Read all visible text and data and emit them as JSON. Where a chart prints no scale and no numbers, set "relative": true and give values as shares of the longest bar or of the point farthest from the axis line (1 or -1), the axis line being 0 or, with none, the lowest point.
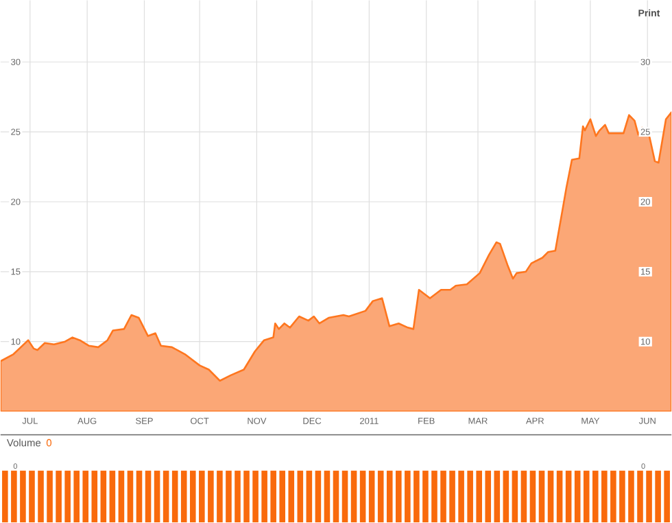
{
  "chart_data": [
    {
      "type": "area",
      "annotations": [
        "Print"
      ],
      "x": [
        "2010-06-15",
        "2010-06-22",
        "2010-06-30",
        "2010-07-03",
        "2010-07-05",
        "2010-07-09",
        "2010-07-14",
        "2010-07-20",
        "2010-07-24",
        "2010-07-28",
        "2010-08-02",
        "2010-08-07",
        "2010-08-12",
        "2010-08-15",
        "2010-08-21",
        "2010-08-25",
        "2010-08-29",
        "2010-09-03",
        "2010-09-07",
        "2010-09-10",
        "2010-09-16",
        "2010-09-23",
        "2010-10-01",
        "2010-10-06",
        "2010-10-12",
        "2010-10-18",
        "2010-10-25",
        "2010-10-31",
        "2010-11-05",
        "2010-11-10",
        "2010-11-11",
        "2010-11-13",
        "2010-11-16",
        "2010-11-19",
        "2010-11-24",
        "2010-11-29",
        "2010-12-02",
        "2010-12-05",
        "2010-12-10",
        "2010-12-18",
        "2010-12-21",
        "2010-12-30",
        "2011-01-03",
        "2011-01-08",
        "2011-01-12",
        "2011-01-17",
        "2011-01-22",
        "2011-01-25",
        "2011-01-28",
        "2011-02-03",
        "2011-02-09",
        "2011-02-14",
        "2011-02-17",
        "2011-02-23",
        "2011-03-02",
        "2011-03-07",
        "2011-03-11",
        "2011-03-13",
        "2011-03-17",
        "2011-03-20",
        "2011-03-22",
        "2011-03-27",
        "2011-03-30",
        "2011-04-05",
        "2011-04-08",
        "2011-04-12",
        "2011-04-16",
        "2011-04-18",
        "2011-04-21",
        "2011-04-25",
        "2011-04-27",
        "2011-04-28",
        "2011-05-01",
        "2011-05-04",
        "2011-05-06",
        "2011-05-09",
        "2011-05-11",
        "2011-05-14",
        "2011-05-19",
        "2011-05-22",
        "2011-05-25",
        "2011-05-27",
        "2011-05-29",
        "2011-06-02",
        "2011-06-05",
        "2011-06-07",
        "2011-06-11",
        "2011-06-14"
      ],
      "series": [
        {
          "color": "#fba776",
          "values": [
            8.6,
            9.1,
            10.1,
            9.5,
            9.4,
            9.9,
            9.8,
            10.0,
            10.3,
            10.1,
            9.7,
            9.6,
            10.1,
            10.8,
            10.9,
            11.9,
            11.7,
            10.4,
            10.6,
            9.7,
            9.6,
            9.1,
            8.3,
            8.0,
            7.2,
            7.6,
            8.0,
            9.3,
            10.1,
            10.3,
            11.3,
            10.9,
            11.3,
            11.0,
            11.8,
            11.5,
            11.8,
            11.3,
            11.7,
            11.9,
            11.8,
            12.2,
            12.9,
            13.1,
            11.1,
            11.3,
            11.0,
            10.9,
            13.7,
            13.1,
            13.7,
            13.7,
            14.0,
            14.1,
            14.9,
            16.2,
            17.1,
            17.0,
            15.5,
            14.5,
            14.9,
            15.0,
            15.6,
            16.0,
            16.4,
            16.5,
            19.5,
            21.0,
            23.0,
            23.1,
            25.4,
            25.1,
            25.9,
            24.7,
            25.1,
            25.5,
            24.9,
            24.9,
            24.9,
            26.2,
            25.8,
            24.8,
            25.3,
            24.7,
            22.9,
            22.8,
            25.9,
            26.4
          ]
        }
      ],
      "xlim": [
        "2010-06-15",
        "2011-06-14"
      ],
      "xticks": [
        {
          "value": "2010-07-01",
          "label": "JUL"
        },
        {
          "value": "2010-08-01",
          "label": "AUG"
        },
        {
          "value": "2010-09-01",
          "label": "SEP"
        },
        {
          "value": "2010-10-01",
          "label": "OCT"
        },
        {
          "value": "2010-11-01",
          "label": "NOV"
        },
        {
          "value": "2010-12-01",
          "label": "DEC"
        },
        {
          "value": "2011-01-01",
          "label": "2011"
        },
        {
          "value": "2011-02-01",
          "label": "FEB"
        },
        {
          "value": "2011-03-01",
          "label": "MAR"
        },
        {
          "value": "2011-04-01",
          "label": "APR"
        },
        {
          "value": "2011-05-01",
          "label": "MAY"
        },
        {
          "value": "2011-06-01",
          "label": "JUN"
        }
      ],
      "ylim": [
        5,
        34.4
      ],
      "yticks": [
        10,
        15,
        20,
        25,
        30
      ],
      "y2lim": [
        5,
        34.4
      ],
      "y2ticks": [
        10,
        15,
        20,
        25,
        30
      ],
      "grid": true,
      "marker": "none"
    },
    {
      "type": "bar",
      "title": "Volume",
      "subtitle": "0",
      "annotations": [
        "0",
        "0"
      ],
      "relative": true,
      "color": "#f96a0c",
      "categories": [
        null,
        null,
        null,
        null,
        null,
        null,
        null,
        null,
        null,
        null,
        null,
        null,
        null,
        null,
        null,
        null,
        null,
        null,
        null,
        null,
        null,
        null,
        null,
        null,
        null,
        null,
        null,
        null,
        null,
        null,
        null,
        null,
        null,
        null,
        null,
        null,
        null,
        null,
        null,
        null,
        null,
        null,
        null,
        null,
        null,
        null,
        null,
        null,
        null,
        null,
        null,
        null,
        null,
        null,
        null,
        null,
        null,
        null,
        null,
        null,
        null,
        null,
        null,
        null,
        null,
        null,
        null,
        null,
        null,
        null,
        null,
        null,
        null,
        null,
        null
      ],
      "values": [
        1,
        1,
        1,
        1,
        1,
        1,
        1,
        1,
        1,
        1,
        1,
        1,
        1,
        1,
        1,
        1,
        1,
        1,
        1,
        1,
        1,
        1,
        1,
        1,
        1,
        1,
        1,
        1,
        1,
        1,
        1,
        1,
        1,
        1,
        1,
        1,
        1,
        1,
        1,
        1,
        1,
        1,
        1,
        1,
        1,
        1,
        1,
        1,
        1,
        1,
        1,
        1,
        1,
        1,
        1,
        1,
        1,
        1,
        1,
        1,
        1,
        1,
        1,
        1,
        1,
        1,
        1,
        1,
        1,
        1,
        1,
        1,
        1,
        1,
        1
      ]
    }
  ]
}
